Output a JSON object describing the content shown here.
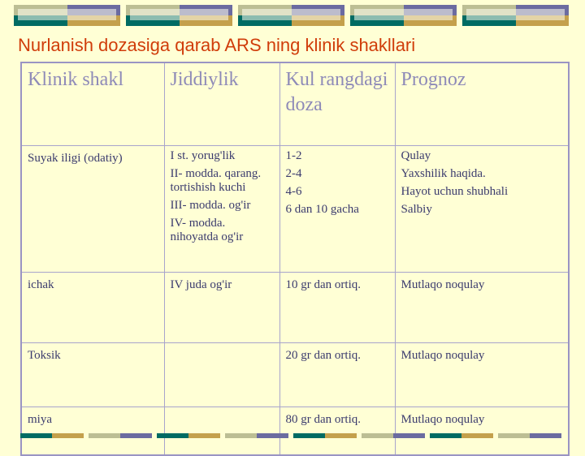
{
  "title": "Nurlanish dozasiga qarab ARS ning klinik shakllari",
  "colors": {
    "teal": "#006b63",
    "gold": "#c4a04c",
    "olive": "#bcbe94",
    "purple": "#6b6ba0",
    "title": "#d03c0a",
    "background": "#ffffd5"
  },
  "table": {
    "headers": [
      "Klinik shakl",
      "Jiddiylik",
      "Kul rangdagi doza",
      "Prognoz"
    ],
    "rows": [
      {
        "shakl": "Suyak iligi (odatiy)",
        "jiddiylik": [
          "I st. yorug'lik",
          "II- modda. qarang. tortishish kuchi",
          "III- modda. og'ir",
          "IV- modda. nihoyatda og'ir"
        ],
        "doza": [
          "1-2",
          "2-4",
          "4-6",
          "6 dan 10 gacha"
        ],
        "prognoz": [
          "Qulay",
          "Yaxshilik haqida.",
          "Hayot uchun shubhali",
          "Salbiy"
        ]
      },
      {
        "shakl": "ichak",
        "jiddiylik": "IV juda og'ir",
        "doza": "10 gr dan ortiq.",
        "prognoz": "Mutlaqo noqulay"
      },
      {
        "shakl": "Toksik",
        "jiddiylik": "",
        "doza": "20 gr dan ortiq.",
        "prognoz": "Mutlaqo noqulay"
      },
      {
        "shakl": "miya",
        "jiddiylik": "",
        "doza": "80 gr dan ortiq.",
        "prognoz": "Mutlaqo noqulay"
      }
    ]
  }
}
